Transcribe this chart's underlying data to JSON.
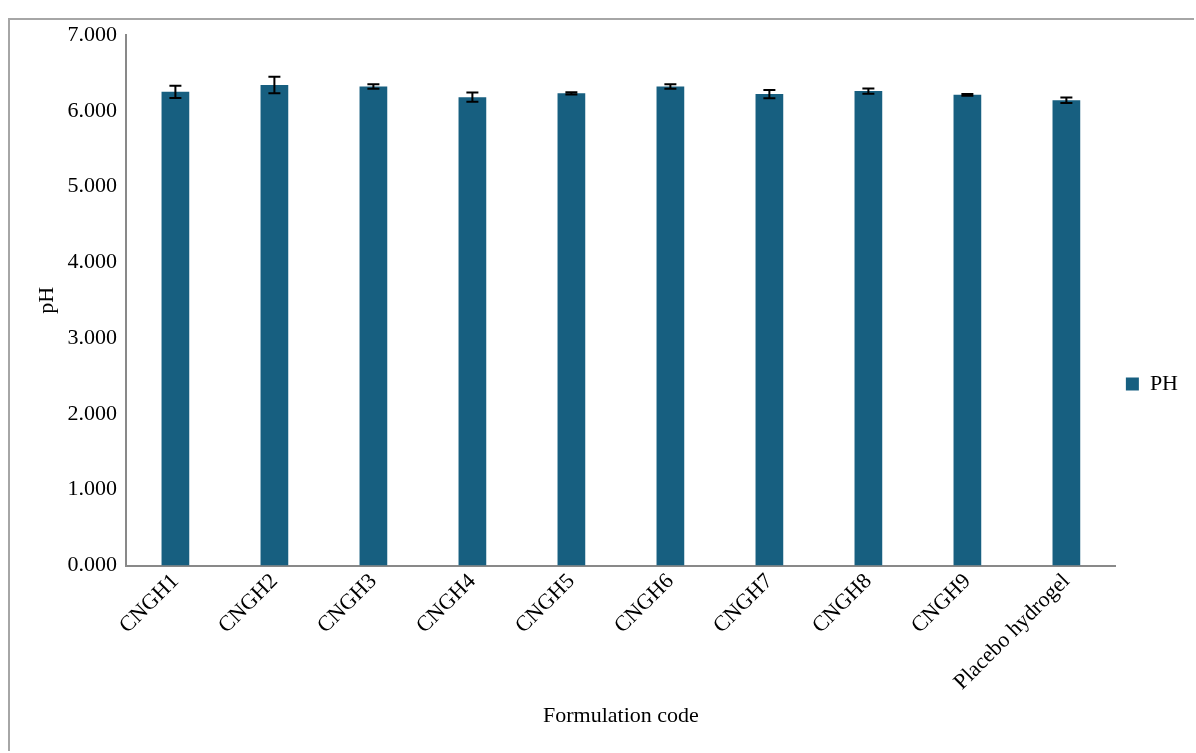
{
  "chart_data": {
    "type": "bar",
    "xlabel": "Formulation code",
    "ylabel": "pH",
    "categories": [
      "CNGH1",
      "CNGH2",
      "CNGH3",
      "CNGH4",
      "CNGH5",
      "CNGH6",
      "CNGH7",
      "CNGH8",
      "CNGH9",
      "Placebo hydrogel"
    ],
    "series": [
      {
        "name": "PH",
        "color": "#175f80",
        "values": [
          6.25,
          6.34,
          6.32,
          6.18,
          6.23,
          6.32,
          6.22,
          6.26,
          6.21,
          6.14
        ],
        "errors": [
          0.08,
          0.11,
          0.03,
          0.06,
          0.015,
          0.03,
          0.055,
          0.035,
          0.01,
          0.036
        ]
      }
    ],
    "ylim": [
      0,
      7
    ],
    "yticks": [
      {
        "value": 0,
        "label": "0.000"
      },
      {
        "value": 1,
        "label": "1.000"
      },
      {
        "value": 2,
        "label": "2.000"
      },
      {
        "value": 3,
        "label": "3.000"
      },
      {
        "value": 4,
        "label": "4.000"
      },
      {
        "value": 5,
        "label": "5.000"
      },
      {
        "value": 6,
        "label": "6.000"
      },
      {
        "value": 7,
        "label": "7.000"
      }
    ],
    "grid": false,
    "legend": "right"
  }
}
